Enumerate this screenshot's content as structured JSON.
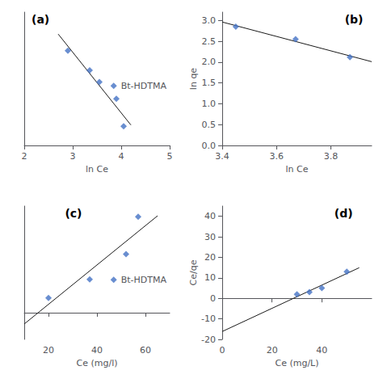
{
  "chart_data": [
    {
      "type": "scatter",
      "title": "(a)",
      "xlabel": "ln Ce",
      "xlim": [
        2,
        5
      ],
      "xticks": [
        2,
        3,
        4,
        5
      ],
      "ylim": [
        1,
        6
      ],
      "yticks": [
        1,
        2,
        3,
        4,
        5,
        6
      ],
      "tick_labels": "x",
      "grid": false,
      "legend": "right",
      "series": [
        {
          "name": "Bt-HDTMA",
          "type": "scatter",
          "marker": "diamond",
          "color": "#4472C4",
          "x": [
            2.9,
            3.35,
            3.55,
            3.9,
            4.05
          ],
          "values": [
            4.55,
            3.82,
            3.38,
            2.75,
            1.72
          ]
        },
        {
          "type": "line",
          "line_style": "solid",
          "color": "#1a1a1a",
          "x": [
            2.7,
            4.2
          ],
          "values": [
            5.1771,
            1.7657
          ]
        }
      ]
    },
    {
      "type": "scatter",
      "title": "(b)",
      "xlabel": "ln Ce",
      "ylabel": "ln qe",
      "xlim": [
        3.4,
        3.95
      ],
      "xticks": [
        3.4,
        3.6,
        3.8
      ],
      "ylim": [
        0,
        3.2
      ],
      "yticks": [
        {
          "value": 0,
          "label": "0.0"
        },
        0.5,
        {
          "value": 1.0,
          "label": "1.0"
        },
        1.5,
        {
          "value": 2.0,
          "label": "2.0"
        },
        2.5,
        {
          "value": 3.0,
          "label": "3.0"
        }
      ],
      "grid": false,
      "series": [
        {
          "type": "scatter",
          "marker": "diamond",
          "color": "#4472C4",
          "x": [
            3.45,
            3.67,
            3.87
          ],
          "values": [
            2.85,
            2.55,
            2.12
          ]
        },
        {
          "type": "line",
          "line_style": "solid",
          "color": "#1a1a1a",
          "x": [
            3.4,
            3.95
          ],
          "values": [
            2.9627,
            2.0102
          ]
        }
      ]
    },
    {
      "type": "scatter",
      "title": "(c)",
      "xlabel": "Ce (mg/l)",
      "xlim": [
        10,
        70
      ],
      "xticks": [
        20,
        40,
        60
      ],
      "ylim": [
        -10,
        40
      ],
      "yticks": [
        -10,
        0,
        10,
        20,
        30,
        40
      ],
      "tick_labels": "x",
      "grid": false,
      "legend": "right",
      "series": [
        {
          "name": "Bt-HDTMA",
          "type": "scatter",
          "marker": "diamond",
          "color": "#4472C4",
          "x": [
            20,
            37,
            52,
            57
          ],
          "values": [
            5.5,
            12.5,
            22,
            36
          ]
        },
        {
          "type": "line",
          "line_style": "solid",
          "color": "#1a1a1a",
          "x": [
            10,
            65
          ],
          "values": [
            -4.2374,
            36.3358
          ]
        }
      ]
    },
    {
      "type": "scatter",
      "title": "(d)",
      "xlabel": "Ce (mg/L)",
      "ylabel": "Ce/qe",
      "xlim": [
        0,
        60
      ],
      "xticks": [
        0,
        20,
        40
      ],
      "ylim": [
        -20,
        45
      ],
      "yticks": [
        -20,
        -10,
        0,
        10,
        20,
        30,
        40
      ],
      "grid": false,
      "series": [
        {
          "type": "scatter",
          "marker": "diamond",
          "color": "#4472C4",
          "x": [
            30,
            35,
            40,
            50
          ],
          "values": [
            2,
            3,
            5,
            13
          ]
        },
        {
          "type": "line",
          "line_style": "solid",
          "color": "#1a1a1a",
          "x": [
            0,
            55
          ],
          "values": [
            -16.1714,
            14.9429
          ]
        }
      ]
    }
  ]
}
